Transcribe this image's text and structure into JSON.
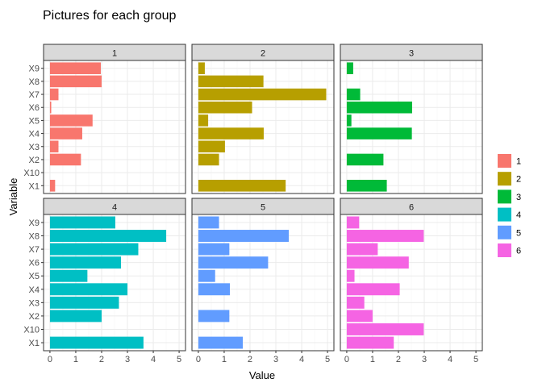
{
  "chart_data": {
    "type": "bar",
    "orientation": "horizontal",
    "title": "Pictures for each group",
    "xlabel": "Value",
    "ylabel": "Variable",
    "categories": [
      "X1",
      "X10",
      "X2",
      "X3",
      "X4",
      "X5",
      "X6",
      "X7",
      "X8",
      "X9"
    ],
    "xlim": [
      0,
      5
    ],
    "x_ticks": [
      0,
      1,
      2,
      3,
      4,
      5
    ],
    "grid": true,
    "legend_position": "right",
    "legend_title": "",
    "facets": [
      {
        "label": "1",
        "color": "#F8766D",
        "values": [
          0.2,
          0,
          1.2,
          0.33,
          1.25,
          1.65,
          0.05,
          0.33,
          2.0,
          1.97
        ]
      },
      {
        "label": "2",
        "color": "#B79F00",
        "values": [
          3.38,
          0,
          0.8,
          1.03,
          2.53,
          0.38,
          2.08,
          4.95,
          2.52,
          0.25
        ]
      },
      {
        "label": "3",
        "color": "#00BA38",
        "values": [
          1.55,
          0,
          1.42,
          0,
          2.52,
          0.18,
          2.53,
          0.52,
          0,
          0.25
        ]
      },
      {
        "label": "4",
        "color": "#00BFC4",
        "values": [
          3.62,
          0,
          2.0,
          2.67,
          3.0,
          1.45,
          2.75,
          3.42,
          4.5,
          2.53
        ]
      },
      {
        "label": "5",
        "color": "#619CFF",
        "values": [
          1.72,
          0,
          1.2,
          0,
          1.22,
          0.65,
          2.7,
          1.2,
          3.5,
          0.8
        ]
      },
      {
        "label": "6",
        "color": "#F564E3",
        "values": [
          1.82,
          2.98,
          1.0,
          0.68,
          2.05,
          0.3,
          2.4,
          1.2,
          2.98,
          0.48
        ]
      }
    ]
  }
}
